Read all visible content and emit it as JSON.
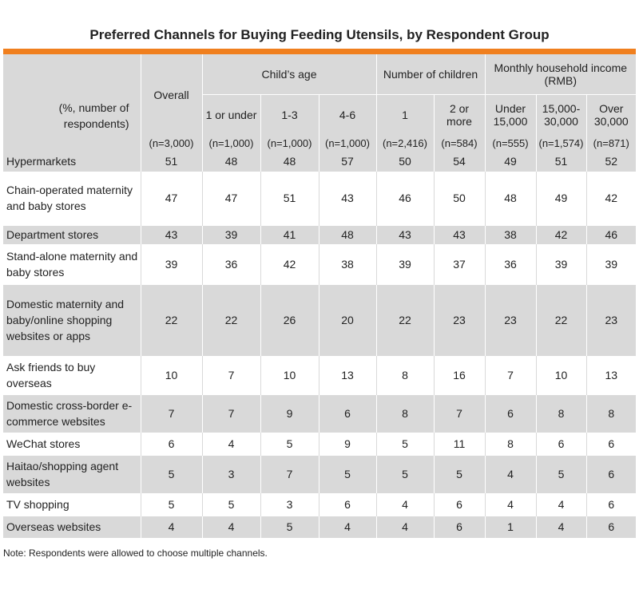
{
  "title": "Preferred Channels for Buying Feeding Utensils, by Respondent Group",
  "header": {
    "corner": "(%, number of respondents)",
    "overall": "Overall",
    "groups": {
      "child_age": "Child’s age",
      "num_children": "Number of children",
      "income": "Monthly household income (RMB)"
    },
    "columns": [
      "1 or under",
      "1-3",
      "4-6",
      "1",
      "2 or more",
      "Under 15,000",
      "15,000-30,000",
      "Over 30,000"
    ],
    "sample_sizes": [
      "(n=3,000)",
      "(n=1,000)",
      "(n=1,000)",
      "(n=1,000)",
      "(n=2,416)",
      "(n=584)",
      "(n=555)",
      "(n=1,574)",
      "(n=871)"
    ]
  },
  "rows": [
    {
      "label": "Hypermarkets",
      "values": [
        "51",
        "48",
        "48",
        "57",
        "50",
        "54",
        "49",
        "51",
        "52"
      ]
    },
    {
      "label": "Chain-operated maternity and baby stores",
      "values": [
        "47",
        "47",
        "51",
        "43",
        "46",
        "50",
        "48",
        "49",
        "42"
      ]
    },
    {
      "label": "Department stores",
      "values": [
        "43",
        "39",
        "41",
        "48",
        "43",
        "43",
        "38",
        "42",
        "46"
      ]
    },
    {
      "label": "Stand-alone maternity and baby stores",
      "values": [
        "39",
        "36",
        "42",
        "38",
        "39",
        "37",
        "36",
        "39",
        "39"
      ]
    },
    {
      "label": "Domestic maternity and baby/online shopping websites or apps",
      "values": [
        "22",
        "22",
        "26",
        "20",
        "22",
        "23",
        "23",
        "22",
        "23"
      ]
    },
    {
      "label": "Ask friends to buy overseas",
      "values": [
        "10",
        "7",
        "10",
        "13",
        "8",
        "16",
        "7",
        "10",
        "13"
      ]
    },
    {
      "label": "Domestic cross-border e-commerce websites",
      "values": [
        "7",
        "7",
        "9",
        "6",
        "8",
        "7",
        "6",
        "8",
        "8"
      ]
    },
    {
      "label": "WeChat stores",
      "values": [
        "6",
        "4",
        "5",
        "9",
        "5",
        "11",
        "8",
        "6",
        "6"
      ]
    },
    {
      "label": "Haitao/shopping agent websites",
      "values": [
        "5",
        "3",
        "7",
        "5",
        "5",
        "5",
        "4",
        "5",
        "6"
      ]
    },
    {
      "label": "TV shopping",
      "values": [
        "5",
        "5",
        "3",
        "6",
        "4",
        "6",
        "4",
        "4",
        "6"
      ]
    },
    {
      "label": "Overseas websites",
      "values": [
        "4",
        "4",
        "5",
        "4",
        "4",
        "6",
        "1",
        "4",
        "6"
      ]
    }
  ],
  "note": "Note: Respondents were allowed to choose multiple channels."
}
